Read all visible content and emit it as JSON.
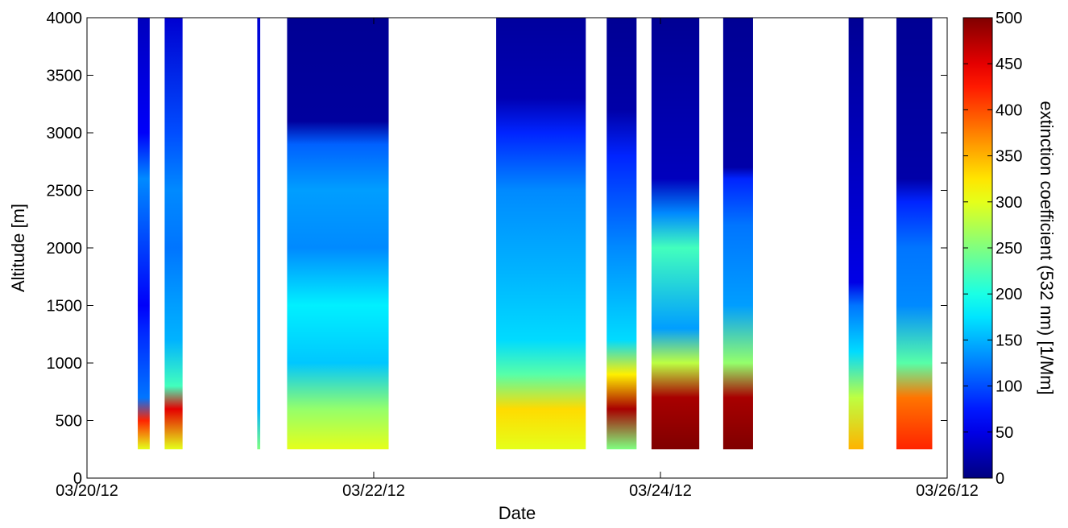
{
  "chart_data": {
    "type": "heatmap",
    "title": "",
    "xlabel": "Date",
    "ylabel": "Altitude [m]",
    "colorbar_label": "extinction coefficient (532 nm) [1/Mm]",
    "colormap": "jet",
    "x_range": [
      "2012-03-20",
      "2012-03-26"
    ],
    "ylim": [
      0,
      4000
    ],
    "clim": [
      0,
      500
    ],
    "x_ticks": [
      {
        "value": "2012-03-20",
        "label": "03/20/12"
      },
      {
        "value": "2012-03-22",
        "label": "03/22/12"
      },
      {
        "value": "2012-03-24",
        "label": "03/24/12"
      },
      {
        "value": "2012-03-26",
        "label": "03/26/12"
      }
    ],
    "y_ticks": [
      0,
      500,
      1000,
      1500,
      2000,
      2500,
      3000,
      3500,
      4000
    ],
    "colorbar_ticks": [
      0,
      50,
      100,
      150,
      200,
      250,
      300,
      350,
      400,
      450,
      500
    ],
    "data_bottom_altitude": 250,
    "segments": [
      {
        "start": "2012-03-20T08:30",
        "end": "2012-03-20T10:30",
        "profile": [
          [
            250,
            300
          ],
          [
            500,
            420
          ],
          [
            700,
            120
          ],
          [
            1300,
            80
          ],
          [
            1500,
            60
          ],
          [
            2600,
            130
          ],
          [
            3000,
            60
          ],
          [
            4000,
            30
          ]
        ]
      },
      {
        "start": "2012-03-20T13:00",
        "end": "2012-03-20T16:00",
        "profile": [
          [
            250,
            300
          ],
          [
            600,
            450
          ],
          [
            800,
            220
          ],
          [
            1200,
            150
          ],
          [
            1500,
            140
          ],
          [
            2000,
            120
          ],
          [
            2500,
            130
          ],
          [
            3000,
            100
          ],
          [
            4000,
            40
          ]
        ]
      },
      {
        "start": "2012-03-21T04:30",
        "end": "2012-03-21T05:00",
        "profile": [
          [
            250,
            250
          ],
          [
            600,
            150
          ],
          [
            2000,
            120
          ],
          [
            3000,
            80
          ],
          [
            4000,
            40
          ]
        ]
      },
      {
        "start": "2012-03-21T09:30",
        "end": "2012-03-22T02:30",
        "profile": [
          [
            250,
            300
          ],
          [
            600,
            260
          ],
          [
            1000,
            160
          ],
          [
            1500,
            180
          ],
          [
            2000,
            130
          ],
          [
            2500,
            140
          ],
          [
            2900,
            110
          ],
          [
            3100,
            15
          ],
          [
            4000,
            10
          ]
        ]
      },
      {
        "start": "2012-03-22T20:30",
        "end": "2012-03-23T11:30",
        "profile": [
          [
            250,
            300
          ],
          [
            600,
            330
          ],
          [
            900,
            230
          ],
          [
            1200,
            170
          ],
          [
            1800,
            150
          ],
          [
            2500,
            130
          ],
          [
            3000,
            80
          ],
          [
            3300,
            25
          ],
          [
            4000,
            15
          ]
        ]
      },
      {
        "start": "2012-03-23T15:00",
        "end": "2012-03-23T20:00",
        "profile": [
          [
            250,
            250
          ],
          [
            600,
            480
          ],
          [
            900,
            320
          ],
          [
            1200,
            170
          ],
          [
            2000,
            130
          ],
          [
            2800,
            80
          ],
          [
            3200,
            20
          ],
          [
            4000,
            10
          ]
        ]
      },
      {
        "start": "2012-03-23T22:30",
        "end": "2012-03-24T06:30",
        "profile": [
          [
            250,
            500
          ],
          [
            700,
            480
          ],
          [
            1000,
            280
          ],
          [
            1300,
            140
          ],
          [
            2000,
            220
          ],
          [
            2300,
            130
          ],
          [
            2600,
            30
          ],
          [
            4000,
            10
          ]
        ]
      },
      {
        "start": "2012-03-24T10:30",
        "end": "2012-03-24T15:30",
        "profile": [
          [
            250,
            500
          ],
          [
            700,
            480
          ],
          [
            1000,
            260
          ],
          [
            1500,
            140
          ],
          [
            2200,
            120
          ],
          [
            2600,
            80
          ],
          [
            2700,
            20
          ],
          [
            4000,
            10
          ]
        ]
      },
      {
        "start": "2012-03-25T07:30",
        "end": "2012-03-25T10:00",
        "profile": [
          [
            250,
            350
          ],
          [
            700,
            280
          ],
          [
            1100,
            170
          ],
          [
            1500,
            120
          ],
          [
            1700,
            50
          ],
          [
            4000,
            10
          ]
        ]
      },
      {
        "start": "2012-03-25T15:30",
        "end": "2012-03-25T21:30",
        "profile": [
          [
            250,
            420
          ],
          [
            700,
            380
          ],
          [
            1000,
            230
          ],
          [
            1500,
            130
          ],
          [
            2000,
            120
          ],
          [
            2400,
            80
          ],
          [
            2600,
            20
          ],
          [
            4000,
            10
          ]
        ]
      }
    ]
  }
}
